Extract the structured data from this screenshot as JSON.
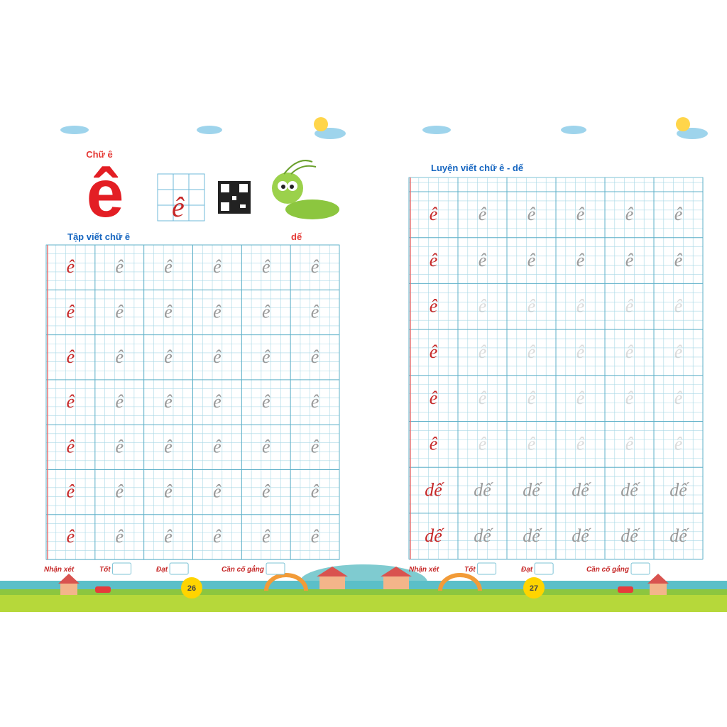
{
  "left_page": {
    "letter_title": "Chữ ê",
    "big_letter": "ê",
    "section_title": "Tập viết chữ ê",
    "word": "dế",
    "practice_rows": [
      "ê",
      "ê",
      "ê",
      "ê",
      "ê",
      "ê",
      "ê"
    ],
    "footer": {
      "label": "Nhận xét",
      "ratings": [
        "Tốt",
        "Đạt",
        "Cần cố gắng"
      ],
      "page_number": "26"
    }
  },
  "right_page": {
    "section_title": "Luyện viết chữ ê - dế",
    "practice_rows": [
      "ê",
      "ê",
      "ê",
      "ê",
      "ê",
      "ê",
      "dế",
      "dế"
    ],
    "footer": {
      "label": "Nhận xét",
      "ratings": [
        "Tốt",
        "Đạt",
        "Cần cố gắng"
      ],
      "page_number": "27"
    }
  }
}
